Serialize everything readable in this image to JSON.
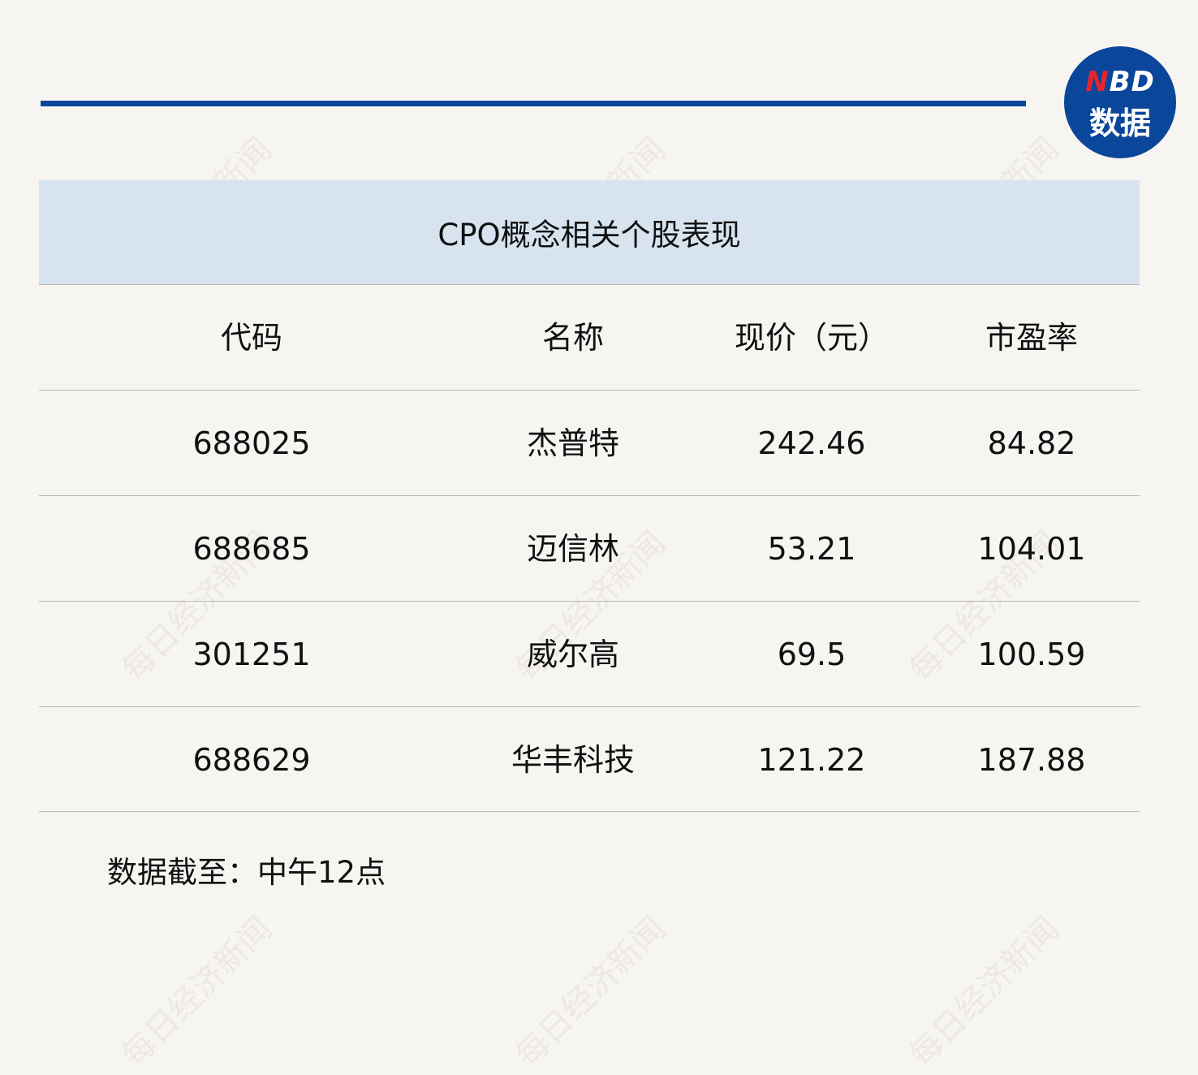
{
  "logo": {
    "brand_n": "N",
    "brand_rest": "BD",
    "subtitle": "数据",
    "colors": {
      "bg": "#0a4699",
      "n": "#e5252f"
    }
  },
  "watermark": "每日经济新闻",
  "table": {
    "title": "CPO概念相关个股表现",
    "headers": [
      "代码",
      "名称",
      "现价（元）",
      "市盈率"
    ],
    "rows": [
      [
        "688025",
        "杰普特",
        "242.46",
        "84.82"
      ],
      [
        "688685",
        "迈信林",
        "53.21",
        "104.01"
      ],
      [
        "301251",
        "威尔高",
        "69.5",
        "100.59"
      ],
      [
        "688629",
        "华丰科技",
        "121.22",
        "187.88"
      ]
    ]
  },
  "footnote": "数据截至：中午12点"
}
